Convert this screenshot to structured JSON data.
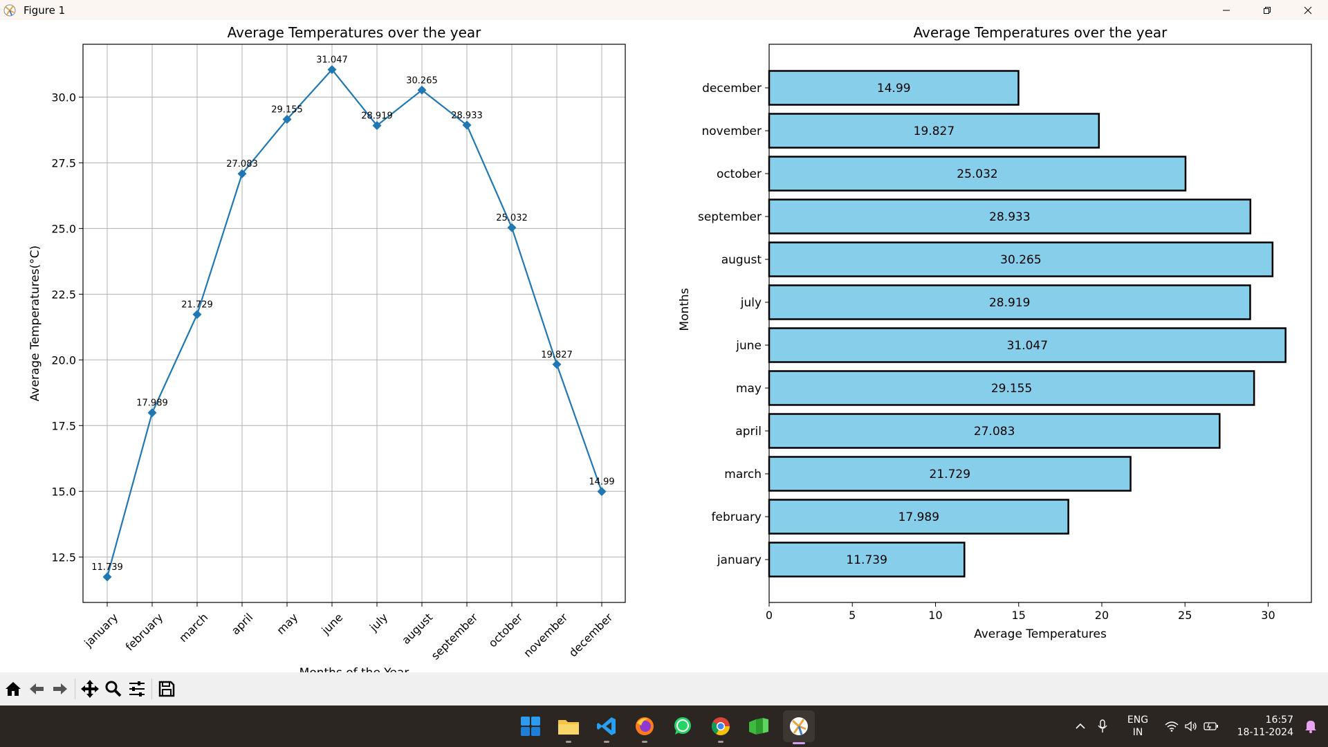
{
  "window": {
    "title": "Figure 1"
  },
  "toolbar": {
    "buttons": [
      "home-icon",
      "back-icon",
      "forward-icon",
      "pan-icon",
      "zoom-icon",
      "configure-subplots-icon",
      "save-icon"
    ]
  },
  "taskbar": {
    "apps": [
      "start-icon",
      "file-explorer-icon",
      "vscode-icon",
      "firefox-icon",
      "whatsapp-icon",
      "chrome-icon",
      "spreadsheet-icon",
      "matplotlib-icon"
    ],
    "language_line1": "ENG",
    "language_line2": "IN",
    "time": "16:57",
    "date": "18-11-2024"
  },
  "chart_data": [
    {
      "type": "line",
      "title": "Average Temperatures over the year",
      "xlabel": "Months of the Year",
      "ylabel": "Average Temperatures(°C)",
      "categories": [
        "january",
        "february",
        "march",
        "april",
        "may",
        "june",
        "july",
        "august",
        "september",
        "october",
        "november",
        "december"
      ],
      "values": [
        11.739,
        17.989,
        21.729,
        27.083,
        29.155,
        31.047,
        28.919,
        30.265,
        28.933,
        25.032,
        19.827,
        14.99
      ],
      "data_labels": [
        "11.739",
        "17.989",
        "21.729",
        "27.083",
        "29.155",
        "31.047",
        "28.919",
        "30.265",
        "28.933",
        "25.032",
        "19.827",
        "14.99"
      ],
      "ylim": [
        10.77,
        32.01
      ],
      "yticks": [
        "12.5",
        "15.0",
        "17.5",
        "20.0",
        "22.5",
        "25.0",
        "27.5",
        "30.0"
      ],
      "marker": "diamond",
      "grid": true,
      "line_color": "#1f77b4"
    },
    {
      "type": "bar",
      "orientation": "horizontal",
      "title": "Average Temperatures over the year",
      "xlabel": "Average Temperatures",
      "ylabel": "Months",
      "categories": [
        "january",
        "february",
        "march",
        "april",
        "may",
        "june",
        "july",
        "august",
        "september",
        "october",
        "november",
        "december"
      ],
      "values": [
        11.739,
        17.989,
        21.729,
        27.083,
        29.155,
        31.047,
        28.919,
        30.265,
        28.933,
        25.032,
        19.827,
        14.99
      ],
      "data_labels": [
        "11.739",
        "17.989",
        "21.729",
        "27.083",
        "29.155",
        "31.047",
        "28.919",
        "30.265",
        "28.933",
        "25.032",
        "19.827",
        "14.99"
      ],
      "xlim": [
        0,
        32.6
      ],
      "xticks": [
        "0",
        "5",
        "10",
        "15",
        "20",
        "25",
        "30"
      ],
      "grid": false,
      "bar_color": "#87ceeb",
      "edge_color": "#000000"
    }
  ]
}
